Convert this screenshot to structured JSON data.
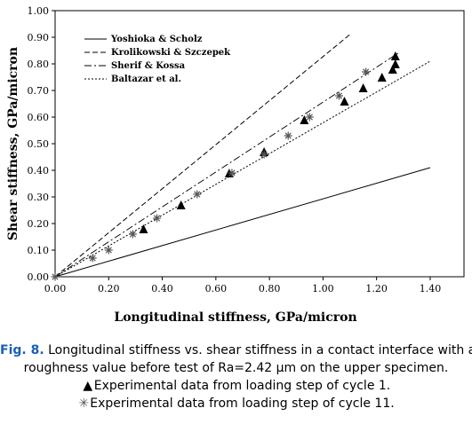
{
  "chart_data": {
    "type": "scatter",
    "xlabel": "Longitudinal stiffness, GPa/micron",
    "ylabel": "Shear stiffness, GPa/micron",
    "xlim": [
      0,
      1.4
    ],
    "ylim": [
      0,
      1.0
    ],
    "x_ticks": [
      "0.00",
      "0.20",
      "0.40",
      "0.60",
      "0.80",
      "1.00",
      "1.20",
      "1.40"
    ],
    "y_ticks": [
      "0.00",
      "0.10",
      "0.20",
      "0.30",
      "0.40",
      "0.50",
      "0.60",
      "0.70",
      "0.80",
      "0.90",
      "1.00"
    ],
    "grid": false,
    "legend_position": "top-left",
    "lines": [
      {
        "name": "Yoshioka & Scholz",
        "style": "solid",
        "points": [
          [
            0,
            0
          ],
          [
            1.4,
            0.41
          ]
        ]
      },
      {
        "name": "Krolikowski & Szczepek",
        "style": "dashed",
        "points": [
          [
            0,
            0
          ],
          [
            1.1,
            0.91
          ]
        ]
      },
      {
        "name": "Sherif & Kossa",
        "style": "dashdot",
        "points": [
          [
            0,
            0
          ],
          [
            1.28,
            0.84
          ]
        ]
      },
      {
        "name": "Baltazar et al.",
        "style": "dotted",
        "points": [
          [
            0,
            0
          ],
          [
            1.4,
            0.81
          ]
        ]
      }
    ],
    "series": [
      {
        "marker": "triangle",
        "points": [
          [
            0.33,
            0.18
          ],
          [
            0.47,
            0.27
          ],
          [
            0.65,
            0.39
          ],
          [
            0.78,
            0.47
          ],
          [
            0.93,
            0.59
          ],
          [
            1.08,
            0.66
          ],
          [
            1.15,
            0.71
          ],
          [
            1.22,
            0.75
          ],
          [
            1.26,
            0.78
          ],
          [
            1.27,
            0.8
          ],
          [
            1.27,
            0.83
          ]
        ]
      },
      {
        "marker": "asterisk",
        "points": [
          [
            0.0,
            0.0
          ],
          [
            0.14,
            0.07
          ],
          [
            0.2,
            0.1
          ],
          [
            0.29,
            0.16
          ],
          [
            0.38,
            0.22
          ],
          [
            0.53,
            0.31
          ],
          [
            0.66,
            0.39
          ],
          [
            0.78,
            0.46
          ],
          [
            0.87,
            0.53
          ],
          [
            0.95,
            0.6
          ],
          [
            1.06,
            0.68
          ],
          [
            1.16,
            0.77
          ]
        ]
      }
    ]
  },
  "caption": {
    "label": "Fig. 8.",
    "line1": " Longitudinal stiffness vs. shear stiffness in a contact interface with a",
    "line2": "roughness value before test of Ra=2.42 μm on the upper specimen.",
    "line3": "Experimental data from loading step of cycle 1.",
    "line4": "Experimental data from loading step of cycle 11.",
    "marker1": "▲",
    "marker2": "✳"
  }
}
